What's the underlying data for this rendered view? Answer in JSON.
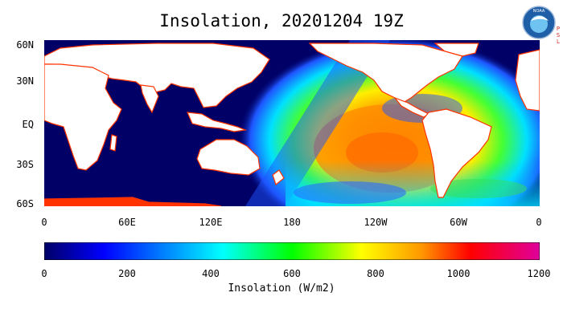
{
  "title": "Insolation, 20201204 19Z",
  "logo": {
    "text": "NOAA",
    "side_text": [
      "P",
      "S",
      "L"
    ],
    "ring_color": "#1f5fa8",
    "inner_color": "#6ec3f0",
    "side_color": "#d12c2c"
  },
  "map": {
    "lat_labels": [
      "60N",
      "30N",
      "EQ",
      "30S",
      "60S"
    ],
    "lon_labels": [
      "0",
      "60E",
      "120E",
      "180",
      "120W",
      "60W",
      "0"
    ],
    "colors": {
      "ocean_dark": "#000066",
      "land": "#ffffff",
      "coast": "#ff3300"
    }
  },
  "colorbar": {
    "ticks": [
      "0",
      "200",
      "400",
      "600",
      "800",
      "1000",
      "1200"
    ],
    "label": "Insolation (W/m2)",
    "stops": [
      "#000066",
      "#0000ff",
      "#00aaff",
      "#00ffff",
      "#00ff00",
      "#ffff00",
      "#ff9900",
      "#ff0000",
      "#e0009c"
    ]
  }
}
